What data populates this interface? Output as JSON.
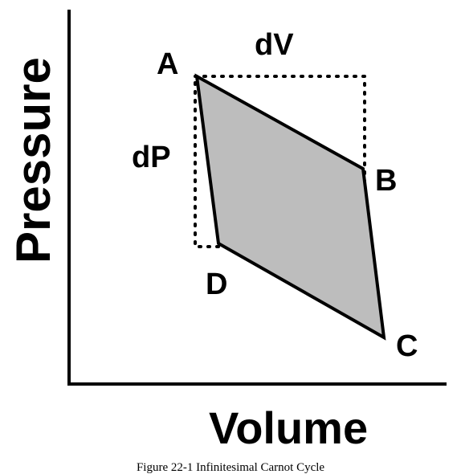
{
  "axes": {
    "x_label": "Volume",
    "y_label": "Pressure"
  },
  "points": {
    "a": "A",
    "b": "B",
    "c": "C",
    "d": "D"
  },
  "deltas": {
    "dv": "dV",
    "dp": "dP"
  },
  "caption": "Figure 22-1 Infinitesimal Carnot Cycle",
  "colors": {
    "cycle_fill": "#bdbdbd",
    "line": "#000000"
  }
}
